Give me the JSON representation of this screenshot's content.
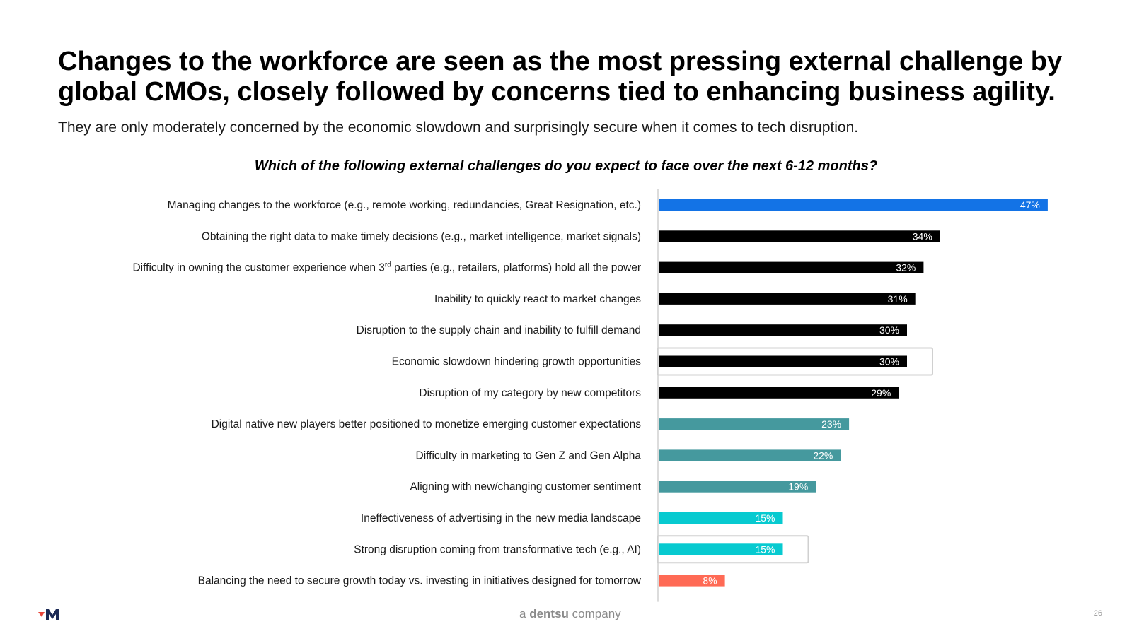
{
  "slide": {
    "title": "Changes to the workforce are seen as the most pressing external challenge by global CMOs, closely followed by concerns tied to enhancing business agility.",
    "subtitle": "They are only moderately concerned by the economic slowdown and surprisingly secure when it comes to tech disruption.",
    "question": "Which of the following external challenges do you expect to face over the next 6-12 months?",
    "footer": {
      "brand_prefix": "a",
      "brand_name": "dentsu",
      "brand_suffix": "company",
      "page_number": "26"
    }
  },
  "chart_data": {
    "type": "bar",
    "orientation": "horizontal",
    "title": "Which of the following external challenges do you expect to face over the next 6-12 months?",
    "value_suffix": "%",
    "xlim": [
      0,
      50
    ],
    "categories": [
      "Managing changes to the workforce (e.g., remote working, redundancies, Great Resignation, etc.)",
      "Obtaining the right data to make timely decisions (e.g., market intelligence, market signals)",
      "Difficulty in owning the customer experience when 3rd parties (e.g., retailers, platforms) hold all the power",
      "Inability to quickly react to market changes",
      "Disruption to the supply chain and inability to fulfill demand",
      "Economic slowdown hindering growth opportunities",
      "Disruption of my category by new competitors",
      "Digital native new players better positioned to monetize emerging customer expectations",
      "Difficulty in marketing to Gen Z and Gen Alpha",
      "Aligning with new/changing customer sentiment",
      "Ineffectiveness of advertising in the new media landscape",
      "Strong disruption coming from transformative tech (e.g., AI)",
      "Balancing the need to secure growth today vs. investing in initiatives designed for tomorrow"
    ],
    "values": [
      47,
      34,
      32,
      31,
      30,
      30,
      29,
      23,
      22,
      19,
      15,
      15,
      8
    ],
    "colors": [
      "#1373e6",
      "#000000",
      "#000000",
      "#000000",
      "#000000",
      "#000000",
      "#000000",
      "#45999e",
      "#45999e",
      "#45999e",
      "#07cad0",
      "#07cad0",
      "#ff6a55"
    ],
    "highlighted": [
      "Economic slowdown hindering growth opportunities",
      "Strong disruption coming from transformative tech (e.g., AI)"
    ]
  }
}
